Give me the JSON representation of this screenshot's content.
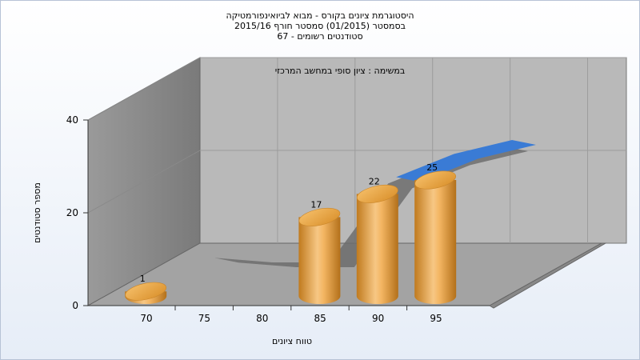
{
  "titles": {
    "line1": "היסטוגרמת ציונים בקורס - מבוא לביואינפורמטיקה",
    "line2": "בסמסטר  (01/2015)  סמסטר חורף 2015/16",
    "line3": "סטודנטים רשומים - 67"
  },
  "chart_data": {
    "type": "bar",
    "subtitle": "במשימה : ציון סופי במחשב המרכזי",
    "xlabel": "טווח ציונים",
    "ylabel": "מספר סטודנטים",
    "x_ticks": [
      "70",
      "75",
      "80",
      "85",
      "90",
      "95"
    ],
    "y_ticks": [
      0,
      20,
      40
    ],
    "ylim": [
      0,
      40
    ],
    "categories": [
      "70",
      "75",
      "80",
      "85",
      "90",
      "95"
    ],
    "values": [
      1,
      0,
      0,
      17,
      22,
      25
    ],
    "labels": [
      "1",
      "",
      "",
      "17",
      "22",
      "25"
    ],
    "bar_color": "#e8a23c",
    "back_line_color": "#3a7bd5",
    "grid": true
  }
}
